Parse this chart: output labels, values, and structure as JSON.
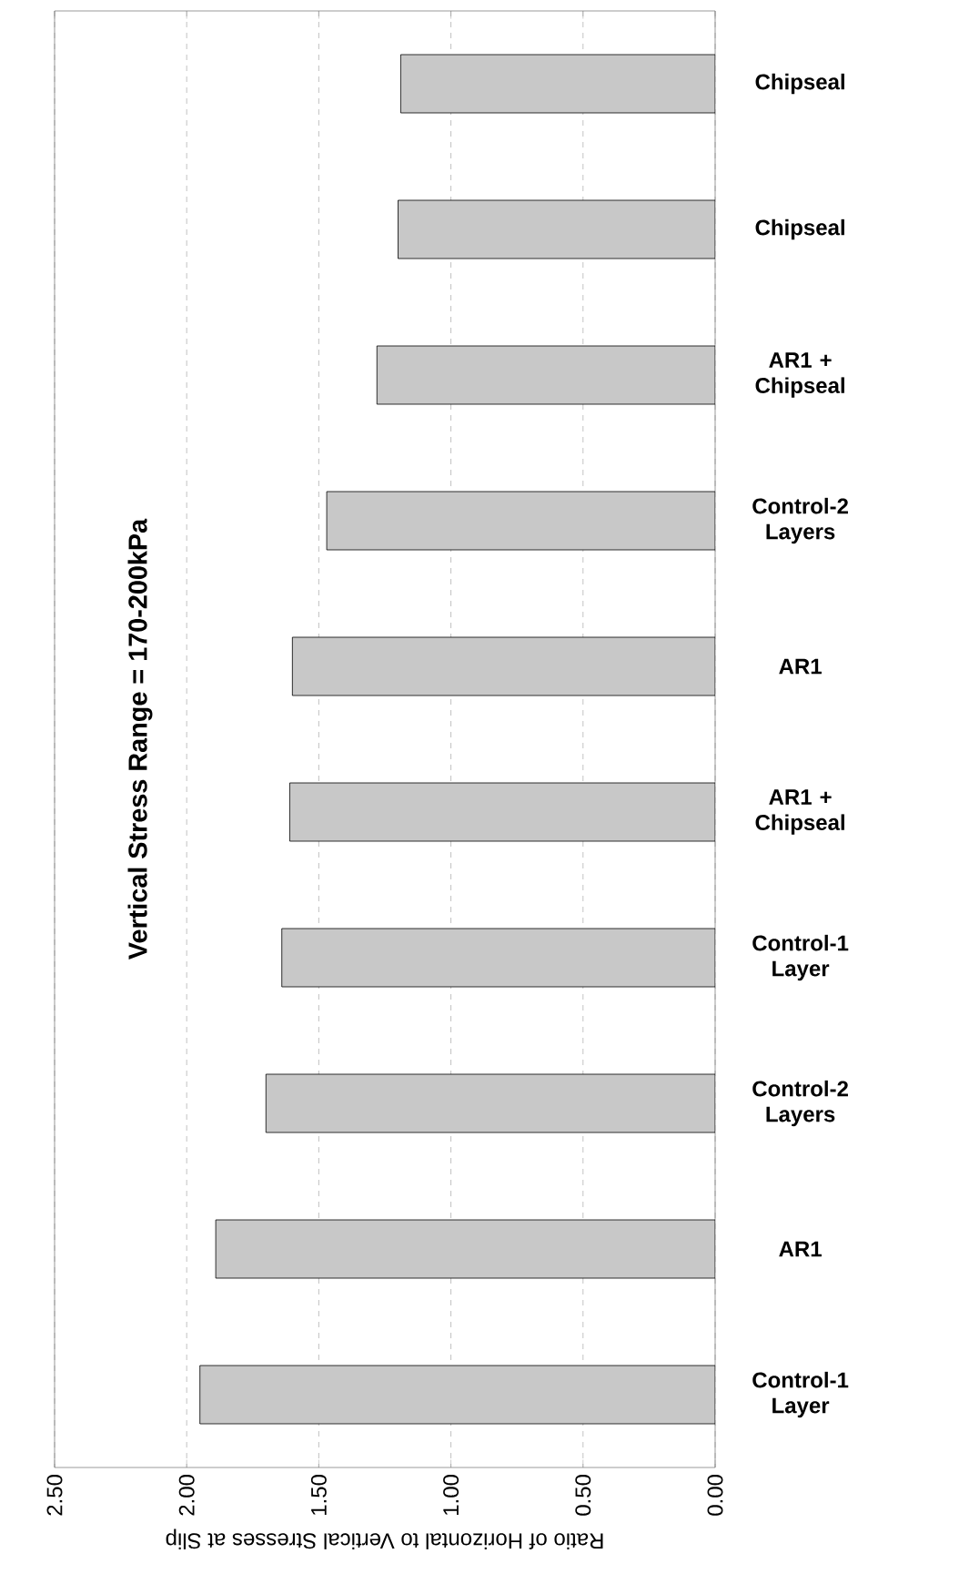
{
  "chart_data": {
    "type": "bar",
    "orientation": "horizontal",
    "title": "Vertical Stress Range  = 170-200kPa",
    "xlabel": "Ratio of Horizontal to Vertical Stresses at Slip",
    "categories": [
      "Chipseal",
      "Chipseal",
      "AR1 + Chipseal",
      "Control-2 Layers",
      "AR1",
      "AR1 + Chipseal",
      "Control-1 Layer",
      "Control-2 Layers",
      "AR1",
      "Control-1 Layer"
    ],
    "values": [
      1.19,
      1.2,
      1.28,
      1.47,
      1.6,
      1.61,
      1.64,
      1.7,
      1.89,
      1.95
    ],
    "color": "#c8c8c8",
    "xlim": [
      2.5,
      0
    ],
    "xticks": [
      {
        "value": 2.5,
        "label": "2.50"
      },
      {
        "value": 2.0,
        "label": "2.00"
      },
      {
        "value": 1.5,
        "label": "1.50"
      },
      {
        "value": 1.0,
        "label": "1.00"
      },
      {
        "value": 0.5,
        "label": "0.50"
      },
      {
        "value": 0,
        "label": "0.00"
      }
    ],
    "grid": "x"
  }
}
